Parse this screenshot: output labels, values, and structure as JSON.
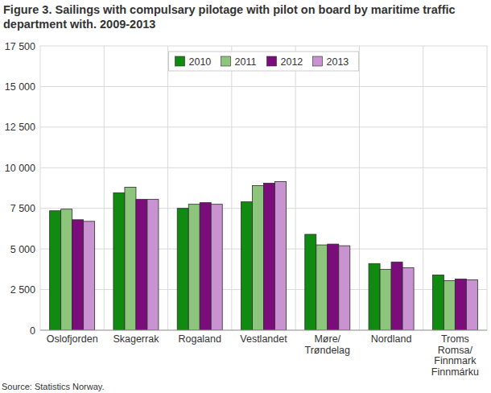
{
  "chart_data": {
    "type": "bar",
    "title": "Figure 3. Sailings with compulsary pilotage with pilot on board by maritime traffic department with. 2009-2013",
    "source": "Source: Statistics Norway.",
    "categories": [
      "Oslofjorden",
      "Skagerrak",
      "Rogaland",
      "Vestlandet",
      "Møre/\nTrøndelag",
      "Nordland",
      "Troms\nRomsa/\nFinnmark\nFinnmárku"
    ],
    "series": [
      {
        "name": "2010",
        "color": "#118a11",
        "values": [
          7350,
          8450,
          7500,
          7900,
          5900,
          4100,
          3400
        ]
      },
      {
        "name": "2011",
        "color": "#8dc57c",
        "values": [
          7450,
          8800,
          7750,
          8900,
          5250,
          3750,
          3050
        ]
      },
      {
        "name": "2012",
        "color": "#7b0d7b",
        "values": [
          6800,
          8050,
          7850,
          9050,
          5300,
          4200,
          3150
        ]
      },
      {
        "name": "2013",
        "color": "#c992d1",
        "values": [
          6700,
          8050,
          7750,
          9150,
          5200,
          3850,
          3100
        ]
      }
    ],
    "ylim": [
      0,
      17500
    ],
    "yticks": [
      0,
      {
        "value": 2500,
        "label": "2 500"
      },
      {
        "value": 5000,
        "label": "5 000"
      },
      {
        "value": 7500,
        "label": "7 500"
      },
      {
        "value": 10000,
        "label": "10 000"
      },
      {
        "value": 12500,
        "label": "12 500"
      },
      {
        "value": 15000,
        "label": "15 000"
      },
      {
        "value": 17500,
        "label": "17 500"
      }
    ],
    "grid": true,
    "legend": "top"
  }
}
